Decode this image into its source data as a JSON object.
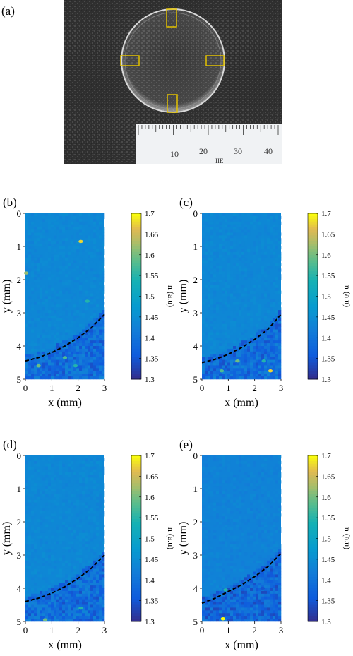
{
  "figure": {
    "panel_a": {
      "label": "(a)",
      "ruler_ticks": [
        "10",
        "20",
        "30",
        "40"
      ],
      "ruler_mark": "ΙΙΕ"
    }
  },
  "chart_data": [
    {
      "type": "heatmap",
      "panel": "(b)",
      "xlabel": "x (mm)",
      "ylabel": "y (mm)",
      "xticks": [
        "0",
        "1",
        "2",
        "3"
      ],
      "yticks": [
        "0",
        "1",
        "2",
        "3",
        "4",
        "5"
      ],
      "xlim": [
        0,
        3
      ],
      "ylim": [
        0,
        5
      ],
      "colorbar": {
        "label": "n (a.u)",
        "range": [
          1.3,
          1.7
        ],
        "ticks": [
          "1.7",
          "1.65",
          "1.6",
          "1.55",
          "1.5",
          "1.45",
          "1.4",
          "1.35",
          "1.3"
        ]
      },
      "background_value": 1.44,
      "boundary_curve": {
        "x": [
          0,
          0.5,
          1,
          1.5,
          2,
          2.5,
          3
        ],
        "y": [
          4.45,
          4.35,
          4.2,
          4.0,
          3.75,
          3.45,
          3.05
        ]
      },
      "hot_spots": [
        {
          "x": 2.1,
          "y": 0.85,
          "value": 1.68
        },
        {
          "x": 0.03,
          "y": 1.8,
          "value": 1.62
        },
        {
          "x": 2.35,
          "y": 2.65,
          "value": 1.55
        },
        {
          "x": 0.5,
          "y": 4.6,
          "value": 1.6
        },
        {
          "x": 1.5,
          "y": 4.35,
          "value": 1.58
        },
        {
          "x": 1.9,
          "y": 4.6,
          "value": 1.55
        }
      ]
    },
    {
      "type": "heatmap",
      "panel": "(c)",
      "xlabel": "x (mm)",
      "ylabel": "y (mm)",
      "xticks": [
        "0",
        "1",
        "2",
        "3"
      ],
      "yticks": [
        "0",
        "1",
        "2",
        "3",
        "4",
        "5"
      ],
      "xlim": [
        0,
        3
      ],
      "ylim": [
        0,
        5
      ],
      "colorbar": {
        "label": "n (a.u)",
        "range": [
          1.3,
          1.7
        ],
        "ticks": [
          "1.7",
          "1.65",
          "1.6",
          "1.55",
          "1.5",
          "1.45",
          "1.4",
          "1.35",
          "1.3"
        ]
      },
      "background_value": 1.44,
      "boundary_curve": {
        "x": [
          0,
          0.5,
          1,
          1.5,
          2,
          2.5,
          3
        ],
        "y": [
          4.5,
          4.4,
          4.25,
          4.05,
          3.8,
          3.5,
          3.05
        ]
      },
      "hot_spots": [
        {
          "x": 2.6,
          "y": 4.75,
          "value": 1.68
        },
        {
          "x": 1.35,
          "y": 4.45,
          "value": 1.6
        },
        {
          "x": 0.75,
          "y": 4.75,
          "value": 1.58
        },
        {
          "x": 2.35,
          "y": 4.45,
          "value": 1.55
        }
      ]
    },
    {
      "type": "heatmap",
      "panel": "(d)",
      "xlabel": "x (mm)",
      "ylabel": "y (mm)",
      "xticks": [
        "0",
        "1",
        "2",
        "3"
      ],
      "yticks": [
        "0",
        "1",
        "2",
        "3",
        "4",
        "5"
      ],
      "xlim": [
        0,
        3
      ],
      "ylim": [
        0,
        5
      ],
      "colorbar": {
        "label": "n (a.u)",
        "range": [
          1.3,
          1.7
        ],
        "ticks": [
          "1.7",
          "1.65",
          "1.6",
          "1.55",
          "1.5",
          "1.45",
          "1.4",
          "1.35",
          "1.3"
        ]
      },
      "background_value": 1.44,
      "boundary_curve": {
        "x": [
          0,
          0.5,
          1,
          1.5,
          2,
          2.5,
          3
        ],
        "y": [
          4.4,
          4.3,
          4.15,
          3.95,
          3.7,
          3.4,
          3.0
        ]
      },
      "hot_spots": [
        {
          "x": 0.75,
          "y": 4.95,
          "value": 1.6
        },
        {
          "x": 2.1,
          "y": 4.6,
          "value": 1.55
        }
      ]
    },
    {
      "type": "heatmap",
      "panel": "(e)",
      "xlabel": "x (mm)",
      "ylabel": "y (mm)",
      "xticks": [
        "0",
        "1",
        "2",
        "3"
      ],
      "yticks": [
        "0",
        "1",
        "2",
        "3",
        "4",
        "5"
      ],
      "xlim": [
        0,
        3
      ],
      "ylim": [
        0,
        5
      ],
      "colorbar": {
        "label": "n (a.u)",
        "range": [
          1.3,
          1.7
        ],
        "ticks": [
          "1.7",
          "1.65",
          "1.6",
          "1.55",
          "1.5",
          "1.45",
          "1.4",
          "1.35",
          "1.3"
        ]
      },
      "background_value": 1.43,
      "boundary_curve": {
        "x": [
          0,
          0.5,
          1,
          1.5,
          2,
          2.5,
          3
        ],
        "y": [
          4.45,
          4.3,
          4.1,
          3.9,
          3.65,
          3.35,
          2.95
        ]
      },
      "hot_spots": [
        {
          "x": 0.8,
          "y": 4.92,
          "value": 1.7
        },
        {
          "x": 0.9,
          "y": 4.05,
          "value": 1.55
        },
        {
          "x": 2.3,
          "y": 4.0,
          "value": 1.35
        }
      ]
    }
  ]
}
